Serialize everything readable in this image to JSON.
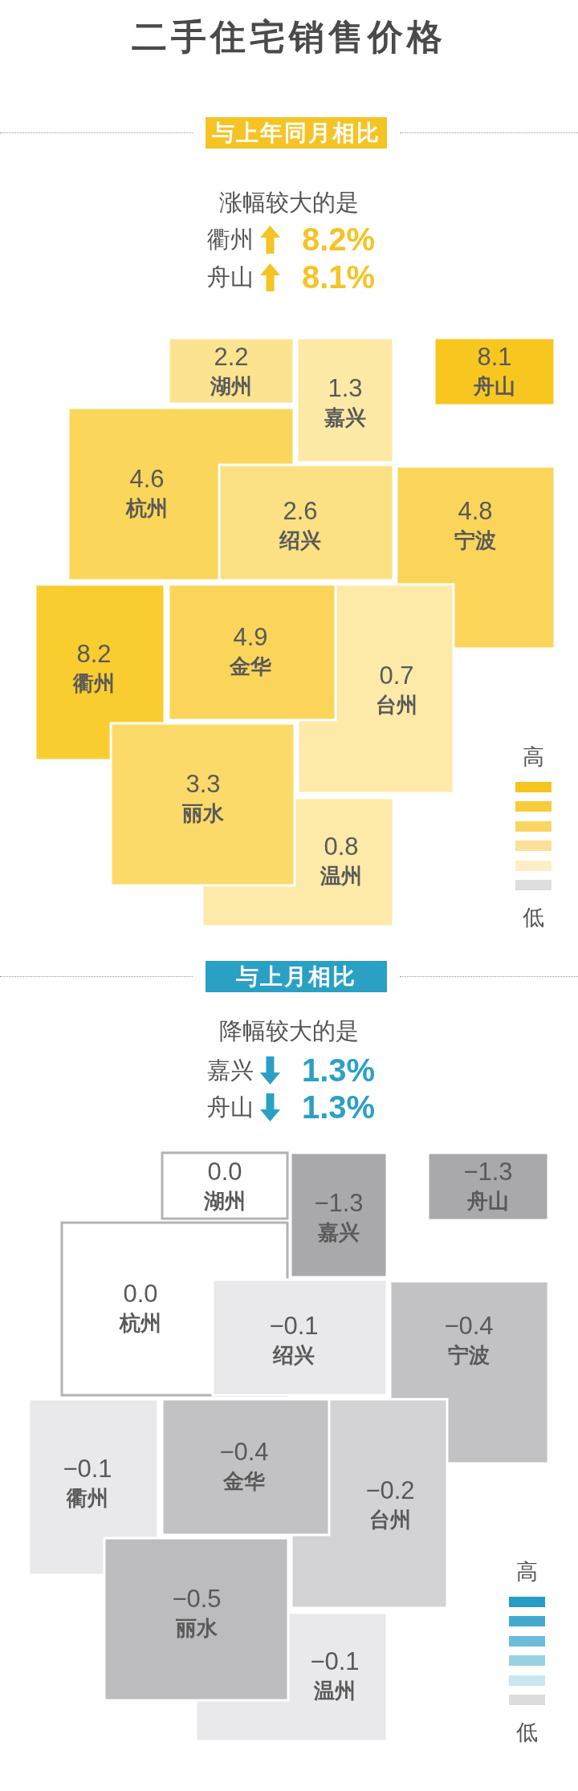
{
  "chart_data": [
    {
      "type": "other",
      "title": "二手住宅销售价格",
      "subtitle": "与上年同月相比",
      "categories": [
        "湖州",
        "嘉兴",
        "舟山",
        "杭州",
        "绍兴",
        "宁波",
        "衢州",
        "金华",
        "台州",
        "丽水",
        "温州"
      ],
      "values": [
        2.2,
        1.3,
        8.1,
        4.6,
        2.6,
        4.8,
        8.2,
        4.9,
        0.7,
        3.3,
        0.8
      ],
      "colors": [
        "#fbe390",
        "#fde9a6",
        "#f8c71f",
        "#fad65a",
        "#fbe084",
        "#fad55a",
        "#f9cc30",
        "#fad55a",
        "#fde9a8",
        "#fbda6a",
        "#fde9a8"
      ],
      "data_labels": true,
      "annotations": [
        "涨幅较大的是",
        "衢州",
        "8.2%",
        "舟山",
        "8.1%",
        "高",
        "低"
      ]
    },
    {
      "type": "other",
      "subtitle": "与上月相比",
      "categories": [
        "湖州",
        "嘉兴",
        "舟山",
        "杭州",
        "绍兴",
        "宁波",
        "衢州",
        "金华",
        "台州",
        "丽水",
        "温州"
      ],
      "values": [
        0.0,
        -1.3,
        -1.3,
        0.0,
        -0.1,
        -0.4,
        -0.1,
        -0.4,
        -0.2,
        -0.5,
        -0.1
      ],
      "value_labels": [
        "0.0",
        "−1.3",
        "−1.3",
        "0.0",
        "−0.1",
        "−0.4",
        "−0.1",
        "−0.4",
        "−0.2",
        "−0.5",
        "−0.1"
      ],
      "colors": [
        "#ffffff",
        "#a9a8aa",
        "#a9a8aa",
        "#ffffff",
        "#e9e8ea",
        "#c2c1c3",
        "#e9e8ea",
        "#c2c1c3",
        "#d3d2d4",
        "#bcbbbd",
        "#e9e8ea"
      ],
      "annotations": [
        "降幅较大的是",
        "嘉兴",
        "1.3%",
        "舟山",
        "1.3%",
        "高",
        "低"
      ]
    }
  ]
}
